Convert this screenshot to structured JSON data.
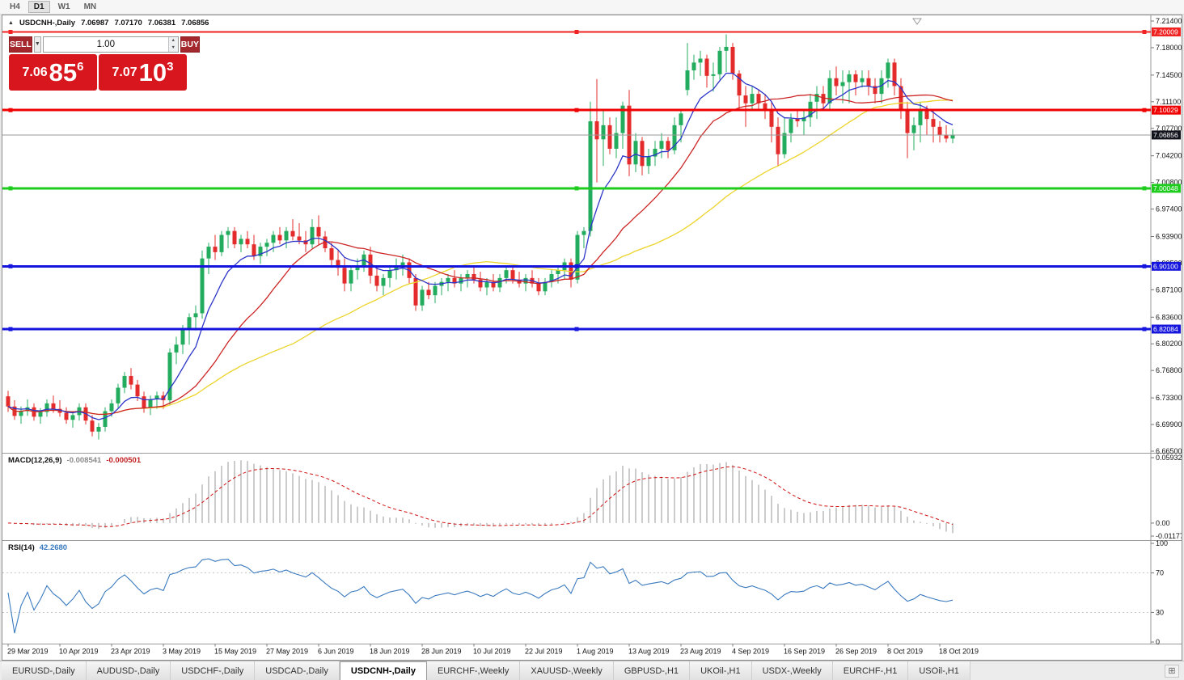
{
  "toolbar": {
    "periods": [
      {
        "label": "H4",
        "active": false
      },
      {
        "label": "D1",
        "active": true
      },
      {
        "label": "W1",
        "active": false
      },
      {
        "label": "MN",
        "active": false
      }
    ]
  },
  "chart": {
    "collapse_icon": "▲",
    "symbol_title": "USDCNH-,Daily",
    "ohlc": {
      "open": "7.06987",
      "high": "7.07170",
      "low": "7.06381",
      "close": "7.06856"
    }
  },
  "trade_panel": {
    "sell_label": "SELL",
    "buy_label": "BUY",
    "volume": "1.00",
    "sell_price": {
      "prefix": "7.06",
      "big": "85",
      "sup": "6"
    },
    "buy_price": {
      "prefix": "7.07",
      "big": "10",
      "sup": "3"
    },
    "icons": {
      "dropdown": "▼",
      "spin_up": "▲",
      "spin_down": "▼"
    },
    "colors": {
      "button": "#a3272c",
      "price_box": "#d8161e"
    }
  },
  "indicators": {
    "macd": {
      "label": "MACD(12,26,9)",
      "value_main": "-0.008541",
      "value_signal": "-0.000501",
      "scale_max": "0.059323",
      "scale_zero": "0.00",
      "scale_min": "-0.0117730",
      "params": {
        "fast": 12,
        "slow": 26,
        "signal": 9
      }
    },
    "rsi": {
      "label": "RSI(14)",
      "value": "42.2680",
      "period": 14,
      "scale_labels": [
        "100",
        "70",
        "30",
        "0"
      ],
      "levels": [
        70,
        30
      ]
    }
  },
  "price_axis": {
    "ticks": [
      "7.21400",
      "7.18000",
      "7.14500",
      "7.11100",
      "7.07700",
      "7.04200",
      "7.00800",
      "6.97400",
      "6.93900",
      "6.90500",
      "6.87100",
      "6.83600",
      "6.80200",
      "6.76800",
      "6.73300",
      "6.69900",
      "6.66500"
    ],
    "current_badge": {
      "text": "7.06856",
      "color": "#10121c"
    }
  },
  "time_axis": {
    "labels": [
      {
        "text": "29 Mar 2019",
        "i": 0
      },
      {
        "text": "10 Apr 2019",
        "i": 8
      },
      {
        "text": "23 Apr 2019",
        "i": 16
      },
      {
        "text": "3 May 2019",
        "i": 24
      },
      {
        "text": "15 May 2019",
        "i": 32
      },
      {
        "text": "27 May 2019",
        "i": 40
      },
      {
        "text": "6 Jun 2019",
        "i": 48
      },
      {
        "text": "18 Jun 2019",
        "i": 56
      },
      {
        "text": "28 Jun 2019",
        "i": 64
      },
      {
        "text": "10 Jul 2019",
        "i": 72
      },
      {
        "text": "22 Jul 2019",
        "i": 80
      },
      {
        "text": "1 Aug 2019",
        "i": 88
      },
      {
        "text": "13 Aug 2019",
        "i": 96
      },
      {
        "text": "23 Aug 2019",
        "i": 104
      },
      {
        "text": "4 Sep 2019",
        "i": 112
      },
      {
        "text": "16 Sep 2019",
        "i": 120
      },
      {
        "text": "26 Sep 2019",
        "i": 128
      },
      {
        "text": "8 Oct 2019",
        "i": 136
      },
      {
        "text": "18 Oct 2019",
        "i": 144
      }
    ]
  },
  "tabs": {
    "items": [
      {
        "label": "EURUSD-,Daily",
        "active": false
      },
      {
        "label": "AUDUSD-,Daily",
        "active": false
      },
      {
        "label": "USDCHF-,Daily",
        "active": false
      },
      {
        "label": "USDCAD-,Daily",
        "active": false
      },
      {
        "label": "USDCNH-,Daily",
        "active": true
      },
      {
        "label": "EURCHF-,Weekly",
        "active": false
      },
      {
        "label": "XAUUSD-,Weekly",
        "active": false
      },
      {
        "label": "GBPUSD-,H1",
        "active": false
      },
      {
        "label": "UKOil-,H1",
        "active": false
      },
      {
        "label": "USDX-,Weekly",
        "active": false
      },
      {
        "label": "EURCHF-,H1",
        "active": false
      },
      {
        "label": "USOil-,H1",
        "active": false
      }
    ],
    "list_icon": "⊞"
  },
  "chart_data": {
    "type": "candlestick",
    "symbol": "USDCNH",
    "timeframe": "Daily",
    "title": "USDCNH-,Daily",
    "ylim": [
      6.663,
      7.2212
    ],
    "grid": false,
    "colors": {
      "up": "#23ac5e",
      "down": "#e42b2b",
      "ma_fast": "#2c35c8",
      "ma_mid": "#cc2424",
      "ma_slow": "#ecd42a",
      "macd_hist": "#aaaaaa",
      "macd_signal": "#d01010",
      "rsi": "#3a7abf",
      "current_line": "#9a9a9a",
      "levels": "#c8c8c8"
    },
    "moving_averages": [
      {
        "type": "ema",
        "period": 8,
        "color_key": "ma_fast"
      },
      {
        "type": "sma",
        "period": 20,
        "color_key": "ma_mid"
      },
      {
        "type": "sma",
        "period": 45,
        "color_key": "ma_slow"
      }
    ],
    "hlines": [
      {
        "price": 7.20009,
        "label": "7.20009",
        "color": "#f02222",
        "width": 2
      },
      {
        "price": 7.10029,
        "label": "7.10029",
        "color": "#f00000",
        "width": 3
      },
      {
        "price": 7.00048,
        "label": "7.00048",
        "color": "#1ecc1e",
        "width": 3
      },
      {
        "price": 6.901,
        "label": "6.90100",
        "color": "#1515dd",
        "width": 3
      },
      {
        "price": 6.82084,
        "label": "6.82084",
        "color": "#1515dd",
        "width": 3
      }
    ],
    "current_price": 7.06856,
    "candles": [
      [
        6.735,
        6.742,
        6.715,
        6.722
      ],
      [
        6.722,
        6.73,
        6.705,
        6.71
      ],
      [
        6.71,
        6.722,
        6.7,
        6.716
      ],
      [
        6.716,
        6.731,
        6.71,
        6.721
      ],
      [
        6.721,
        6.726,
        6.704,
        6.709
      ],
      [
        6.709,
        6.72,
        6.7,
        6.715
      ],
      [
        6.715,
        6.731,
        6.709,
        6.726
      ],
      [
        6.726,
        6.736,
        6.714,
        6.719
      ],
      [
        6.719,
        6.73,
        6.709,
        6.714
      ],
      [
        6.714,
        6.721,
        6.7,
        6.705
      ],
      [
        6.705,
        6.716,
        6.695,
        6.711
      ],
      [
        6.711,
        6.726,
        6.704,
        6.721
      ],
      [
        6.721,
        6.726,
        6.699,
        6.704
      ],
      [
        6.704,
        6.711,
        6.684,
        6.69
      ],
      [
        6.69,
        6.701,
        6.68,
        6.696
      ],
      [
        6.696,
        6.721,
        6.69,
        6.716
      ],
      [
        6.716,
        6.731,
        6.709,
        6.726
      ],
      [
        6.726,
        6.751,
        6.719,
        6.746
      ],
      [
        6.746,
        6.766,
        6.739,
        6.761
      ],
      [
        6.761,
        6.771,
        6.744,
        6.75
      ],
      [
        6.75,
        6.756,
        6.729,
        6.735
      ],
      [
        6.735,
        6.741,
        6.714,
        6.72
      ],
      [
        6.72,
        6.736,
        6.711,
        6.731
      ],
      [
        6.731,
        6.741,
        6.719,
        6.736
      ],
      [
        6.736,
        6.741,
        6.719,
        6.73
      ],
      [
        6.73,
        6.796,
        6.724,
        6.791
      ],
      [
        6.791,
        6.811,
        6.776,
        6.801
      ],
      [
        6.801,
        6.826,
        6.789,
        6.821
      ],
      [
        6.821,
        6.841,
        6.801,
        6.836
      ],
      [
        6.836,
        6.851,
        6.819,
        6.841
      ],
      [
        6.841,
        6.921,
        6.834,
        6.911
      ],
      [
        6.911,
        6.931,
        6.891,
        6.926
      ],
      [
        6.926,
        6.941,
        6.909,
        6.919
      ],
      [
        6.919,
        6.946,
        6.914,
        6.941
      ],
      [
        6.941,
        6.951,
        6.924,
        6.946
      ],
      [
        6.946,
        6.951,
        6.924,
        6.929
      ],
      [
        6.929,
        6.941,
        6.919,
        6.936
      ],
      [
        6.936,
        6.946,
        6.924,
        6.929
      ],
      [
        6.929,
        6.941,
        6.909,
        6.914
      ],
      [
        6.914,
        6.931,
        6.904,
        6.926
      ],
      [
        6.926,
        6.936,
        6.914,
        6.931
      ],
      [
        6.931,
        6.946,
        6.919,
        6.941
      ],
      [
        6.941,
        6.951,
        6.929,
        6.934
      ],
      [
        6.934,
        6.951,
        6.924,
        6.946
      ],
      [
        6.946,
        6.961,
        6.934,
        6.939
      ],
      [
        6.939,
        6.956,
        6.929,
        6.934
      ],
      [
        6.934,
        6.946,
        6.919,
        6.929
      ],
      [
        6.929,
        6.961,
        6.924,
        6.951
      ],
      [
        6.951,
        6.966,
        6.929,
        6.939
      ],
      [
        6.939,
        6.946,
        6.919,
        6.924
      ],
      [
        6.924,
        6.931,
        6.899,
        6.909
      ],
      [
        6.909,
        6.921,
        6.889,
        6.899
      ],
      [
        6.899,
        6.911,
        6.869,
        6.879
      ],
      [
        6.879,
        6.901,
        6.869,
        6.896
      ],
      [
        6.896,
        6.911,
        6.884,
        6.901
      ],
      [
        6.901,
        6.921,
        6.894,
        6.916
      ],
      [
        6.916,
        6.926,
        6.879,
        6.889
      ],
      [
        6.889,
        6.901,
        6.869,
        6.876
      ],
      [
        6.876,
        6.891,
        6.864,
        6.886
      ],
      [
        6.886,
        6.901,
        6.874,
        6.896
      ],
      [
        6.896,
        6.911,
        6.884,
        6.901
      ],
      [
        6.901,
        6.916,
        6.889,
        6.906
      ],
      [
        6.906,
        6.911,
        6.879,
        6.886
      ],
      [
        6.886,
        6.891,
        6.844,
        6.851
      ],
      [
        6.851,
        6.876,
        6.844,
        6.871
      ],
      [
        6.871,
        6.881,
        6.859,
        6.864
      ],
      [
        6.864,
        6.881,
        6.854,
        6.876
      ],
      [
        6.876,
        6.886,
        6.864,
        6.881
      ],
      [
        6.881,
        6.891,
        6.869,
        6.886
      ],
      [
        6.886,
        6.896,
        6.874,
        6.879
      ],
      [
        6.879,
        6.891,
        6.869,
        6.886
      ],
      [
        6.886,
        6.896,
        6.874,
        6.891
      ],
      [
        6.891,
        6.901,
        6.879,
        6.884
      ],
      [
        6.884,
        6.894,
        6.869,
        6.874
      ],
      [
        6.874,
        6.886,
        6.864,
        6.881
      ],
      [
        6.881,
        6.891,
        6.869,
        6.874
      ],
      [
        6.874,
        6.891,
        6.868,
        6.886
      ],
      [
        6.886,
        6.901,
        6.879,
        6.896
      ],
      [
        6.896,
        6.901,
        6.879,
        6.884
      ],
      [
        6.884,
        6.894,
        6.874,
        6.879
      ],
      [
        6.879,
        6.891,
        6.869,
        6.886
      ],
      [
        6.886,
        6.896,
        6.874,
        6.879
      ],
      [
        6.879,
        6.886,
        6.864,
        6.869
      ],
      [
        6.869,
        6.886,
        6.864,
        6.881
      ],
      [
        6.881,
        6.896,
        6.874,
        6.891
      ],
      [
        6.891,
        6.901,
        6.879,
        6.896
      ],
      [
        6.896,
        6.911,
        6.884,
        6.906
      ],
      [
        6.906,
        6.911,
        6.874,
        6.884
      ],
      [
        6.884,
        6.946,
        6.879,
        6.941
      ],
      [
        6.941,
        6.951,
        6.924,
        6.946
      ],
      [
        6.946,
        7.111,
        6.939,
        7.086
      ],
      [
        7.086,
        7.14,
        7.008,
        7.063
      ],
      [
        7.063,
        7.101,
        7.029,
        7.081
      ],
      [
        7.081,
        7.091,
        7.044,
        7.051
      ],
      [
        7.051,
        7.091,
        7.039,
        7.071
      ],
      [
        7.071,
        7.111,
        7.051,
        7.106
      ],
      [
        7.106,
        7.126,
        7.016,
        7.031
      ],
      [
        7.031,
        7.071,
        7.021,
        7.061
      ],
      [
        7.061,
        7.066,
        7.017,
        7.029
      ],
      [
        7.029,
        7.051,
        7.019,
        7.041
      ],
      [
        7.041,
        7.061,
        7.029,
        7.051
      ],
      [
        7.051,
        7.071,
        7.039,
        7.061
      ],
      [
        7.061,
        7.066,
        7.039,
        7.049
      ],
      [
        7.049,
        7.091,
        7.044,
        7.081
      ],
      [
        7.081,
        7.101,
        7.059,
        7.096
      ],
      [
        7.126,
        7.186,
        7.119,
        7.151
      ],
      [
        7.151,
        7.171,
        7.139,
        7.161
      ],
      [
        7.161,
        7.176,
        7.144,
        7.166
      ],
      [
        7.166,
        7.171,
        7.129,
        7.144
      ],
      [
        7.144,
        7.161,
        7.124,
        7.146
      ],
      [
        7.146,
        7.181,
        7.139,
        7.176
      ],
      [
        7.176,
        7.197,
        7.149,
        7.181
      ],
      [
        7.181,
        7.186,
        7.139,
        7.147
      ],
      [
        7.147,
        7.151,
        7.099,
        7.119
      ],
      [
        7.119,
        7.131,
        7.079,
        7.109
      ],
      [
        7.109,
        7.131,
        7.099,
        7.121
      ],
      [
        7.121,
        7.126,
        7.099,
        7.109
      ],
      [
        7.109,
        7.121,
        7.089,
        7.099
      ],
      [
        7.099,
        7.111,
        7.059,
        7.079
      ],
      [
        7.079,
        7.091,
        7.029,
        7.044
      ],
      [
        7.044,
        7.091,
        7.039,
        7.071
      ],
      [
        7.071,
        7.096,
        7.059,
        7.089
      ],
      [
        7.089,
        7.101,
        7.079,
        7.086
      ],
      [
        7.086,
        7.101,
        7.069,
        7.091
      ],
      [
        7.091,
        7.121,
        7.079,
        7.111
      ],
      [
        7.111,
        7.131,
        7.089,
        7.121
      ],
      [
        7.121,
        7.131,
        7.099,
        7.109
      ],
      [
        7.109,
        7.151,
        7.099,
        7.141
      ],
      [
        7.141,
        7.156,
        7.119,
        7.131
      ],
      [
        7.131,
        7.151,
        7.109,
        7.136
      ],
      [
        7.136,
        7.151,
        7.109,
        7.146
      ],
      [
        7.146,
        7.151,
        7.119,
        7.136
      ],
      [
        7.136,
        7.151,
        7.129,
        7.141
      ],
      [
        7.141,
        7.151,
        7.119,
        7.131
      ],
      [
        7.131,
        7.141,
        7.109,
        7.121
      ],
      [
        7.121,
        7.151,
        7.109,
        7.141
      ],
      [
        7.141,
        7.166,
        7.129,
        7.161
      ],
      [
        7.161,
        7.166,
        7.119,
        7.131
      ],
      [
        7.131,
        7.141,
        7.089,
        7.101
      ],
      [
        7.101,
        7.111,
        7.039,
        7.071
      ],
      [
        7.071,
        7.091,
        7.049,
        7.081
      ],
      [
        7.081,
        7.111,
        7.059,
        7.101
      ],
      [
        7.101,
        7.106,
        7.069,
        7.089
      ],
      [
        7.089,
        7.101,
        7.059,
        7.079
      ],
      [
        7.079,
        7.086,
        7.059,
        7.069
      ],
      [
        7.069,
        7.081,
        7.059,
        7.064
      ],
      [
        7.064,
        7.076,
        7.058,
        7.069
      ]
    ]
  }
}
